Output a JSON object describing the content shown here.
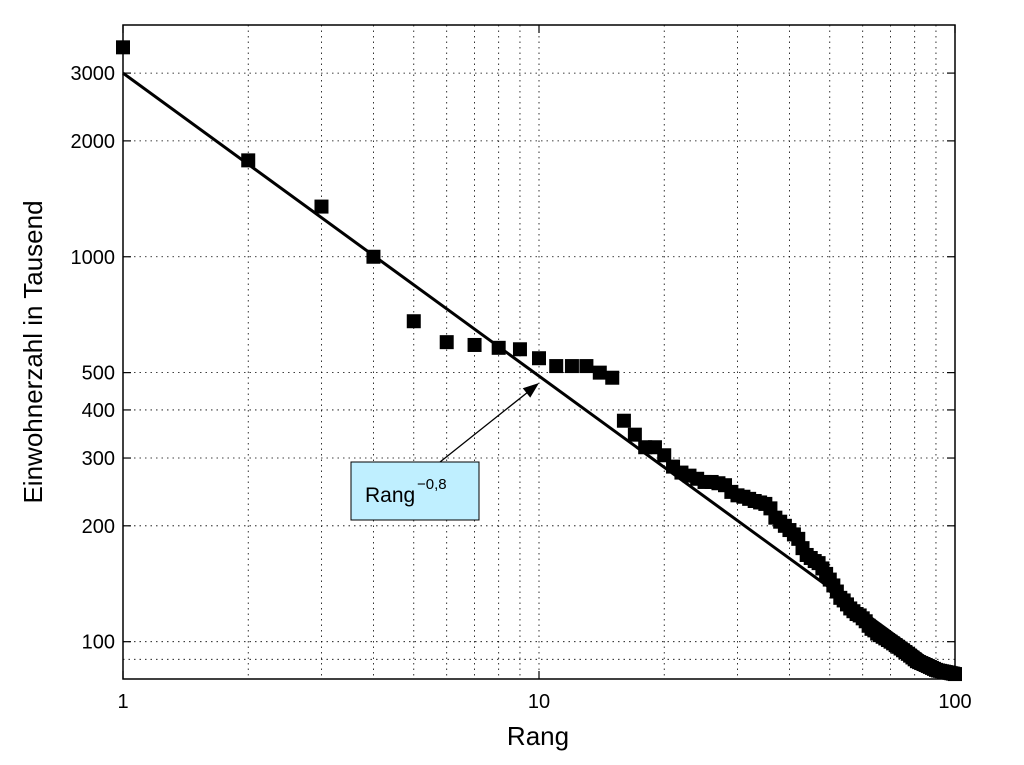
{
  "chart_data": {
    "type": "scatter",
    "title": "",
    "xlabel": "Rang",
    "ylabel": "Einwohnerzahl in Tausend",
    "x_scale": "log",
    "y_scale": "log",
    "xlim": [
      1,
      100
    ],
    "ylim": [
      80,
      4000
    ],
    "grid": true,
    "x_ticks": [
      1,
      10,
      100
    ],
    "x_tick_labels": [
      "1",
      "10",
      "100"
    ],
    "y_ticks": [
      100,
      200,
      300,
      400,
      500,
      1000,
      2000,
      3000
    ],
    "y_tick_labels": [
      "100",
      "200",
      "300",
      "400",
      "500",
      "1000",
      "2000",
      "3000"
    ],
    "series": [
      {
        "type": "scatter",
        "marker": "square",
        "color": "#000000",
        "x": [
          1,
          2,
          3,
          4,
          5,
          6,
          7,
          8,
          9,
          10,
          11,
          12,
          13,
          14,
          15,
          16,
          17,
          18,
          19,
          20,
          21,
          22,
          23,
          24,
          25,
          26,
          27,
          28,
          29,
          30,
          31,
          32,
          33,
          34,
          35,
          36,
          37,
          38,
          39,
          40,
          41,
          42,
          43,
          44,
          45,
          46,
          47,
          48,
          49,
          50,
          51,
          52,
          53,
          54,
          55,
          56,
          57,
          58,
          59,
          60,
          61,
          62,
          63,
          64,
          65,
          66,
          67,
          68,
          69,
          70,
          71,
          72,
          73,
          74,
          75,
          76,
          77,
          78,
          79,
          80,
          81,
          82,
          83,
          84,
          85,
          86,
          87,
          88,
          89,
          90,
          91,
          92,
          93,
          94,
          95,
          96,
          97,
          98,
          99,
          100
        ],
        "y": [
          3500,
          1780,
          1350,
          1000,
          680,
          600,
          590,
          580,
          575,
          545,
          520,
          520,
          520,
          500,
          485,
          375,
          345,
          320,
          320,
          305,
          285,
          275,
          270,
          265,
          260,
          260,
          258,
          255,
          245,
          240,
          238,
          235,
          232,
          230,
          228,
          222,
          210,
          205,
          200,
          195,
          190,
          185,
          175,
          168,
          165,
          162,
          160,
          155,
          150,
          145,
          140,
          135,
          130,
          128,
          125,
          122,
          120,
          118,
          117,
          115,
          113,
          110,
          108,
          107,
          105,
          104,
          103,
          102,
          101,
          100,
          99,
          98,
          97,
          96,
          95,
          94,
          93,
          92,
          91,
          90,
          89,
          88.5,
          88,
          87.5,
          87,
          86.5,
          86,
          85.5,
          85,
          84.5,
          84.2,
          84,
          83.8,
          83.6,
          83.4,
          83.2,
          83,
          82.8,
          82.6,
          82.4
        ]
      },
      {
        "type": "line",
        "color": "#000000",
        "x": [
          1,
          100
        ],
        "y": [
          3000,
          80
        ]
      }
    ],
    "annotations": [
      {
        "text": "Rang",
        "superscript": "−0,8",
        "box_color": "#bfefff",
        "arrow_to": [
          10,
          470
        ]
      }
    ]
  }
}
